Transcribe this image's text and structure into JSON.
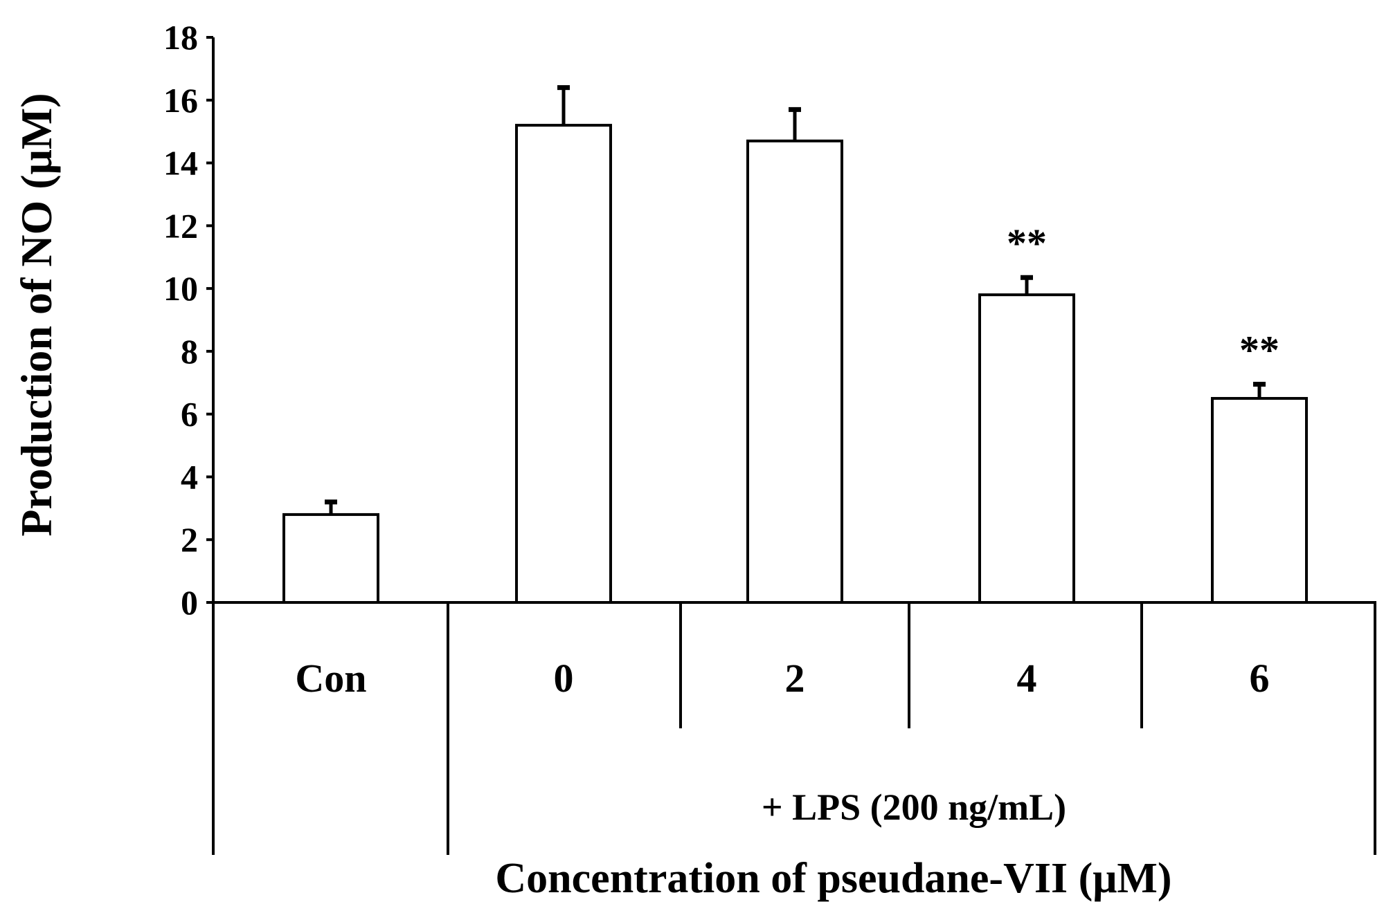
{
  "chart_data": {
    "type": "bar",
    "title": "",
    "categories": [
      "Con",
      "0",
      "2",
      "4",
      "6"
    ],
    "values": [
      2.8,
      15.2,
      14.7,
      9.8,
      6.5
    ],
    "error_upper": [
      3.2,
      16.4,
      15.7,
      10.35,
      6.95
    ],
    "annotations": [
      "",
      "",
      "",
      "**",
      "**"
    ],
    "group_label": "+ LPS (200 ng/mL)",
    "xlabel": "Concentration of pseudane-VII (μM)",
    "ylabel": "Production of NO (μM)",
    "ylim": [
      0,
      18
    ],
    "yticks": [
      "0",
      "2",
      "4",
      "6",
      "8",
      "10",
      "12",
      "14",
      "16",
      "18"
    ],
    "bar_fill": "#ffffff",
    "bar_stroke": "#000000",
    "grid": false,
    "legend": "none"
  }
}
